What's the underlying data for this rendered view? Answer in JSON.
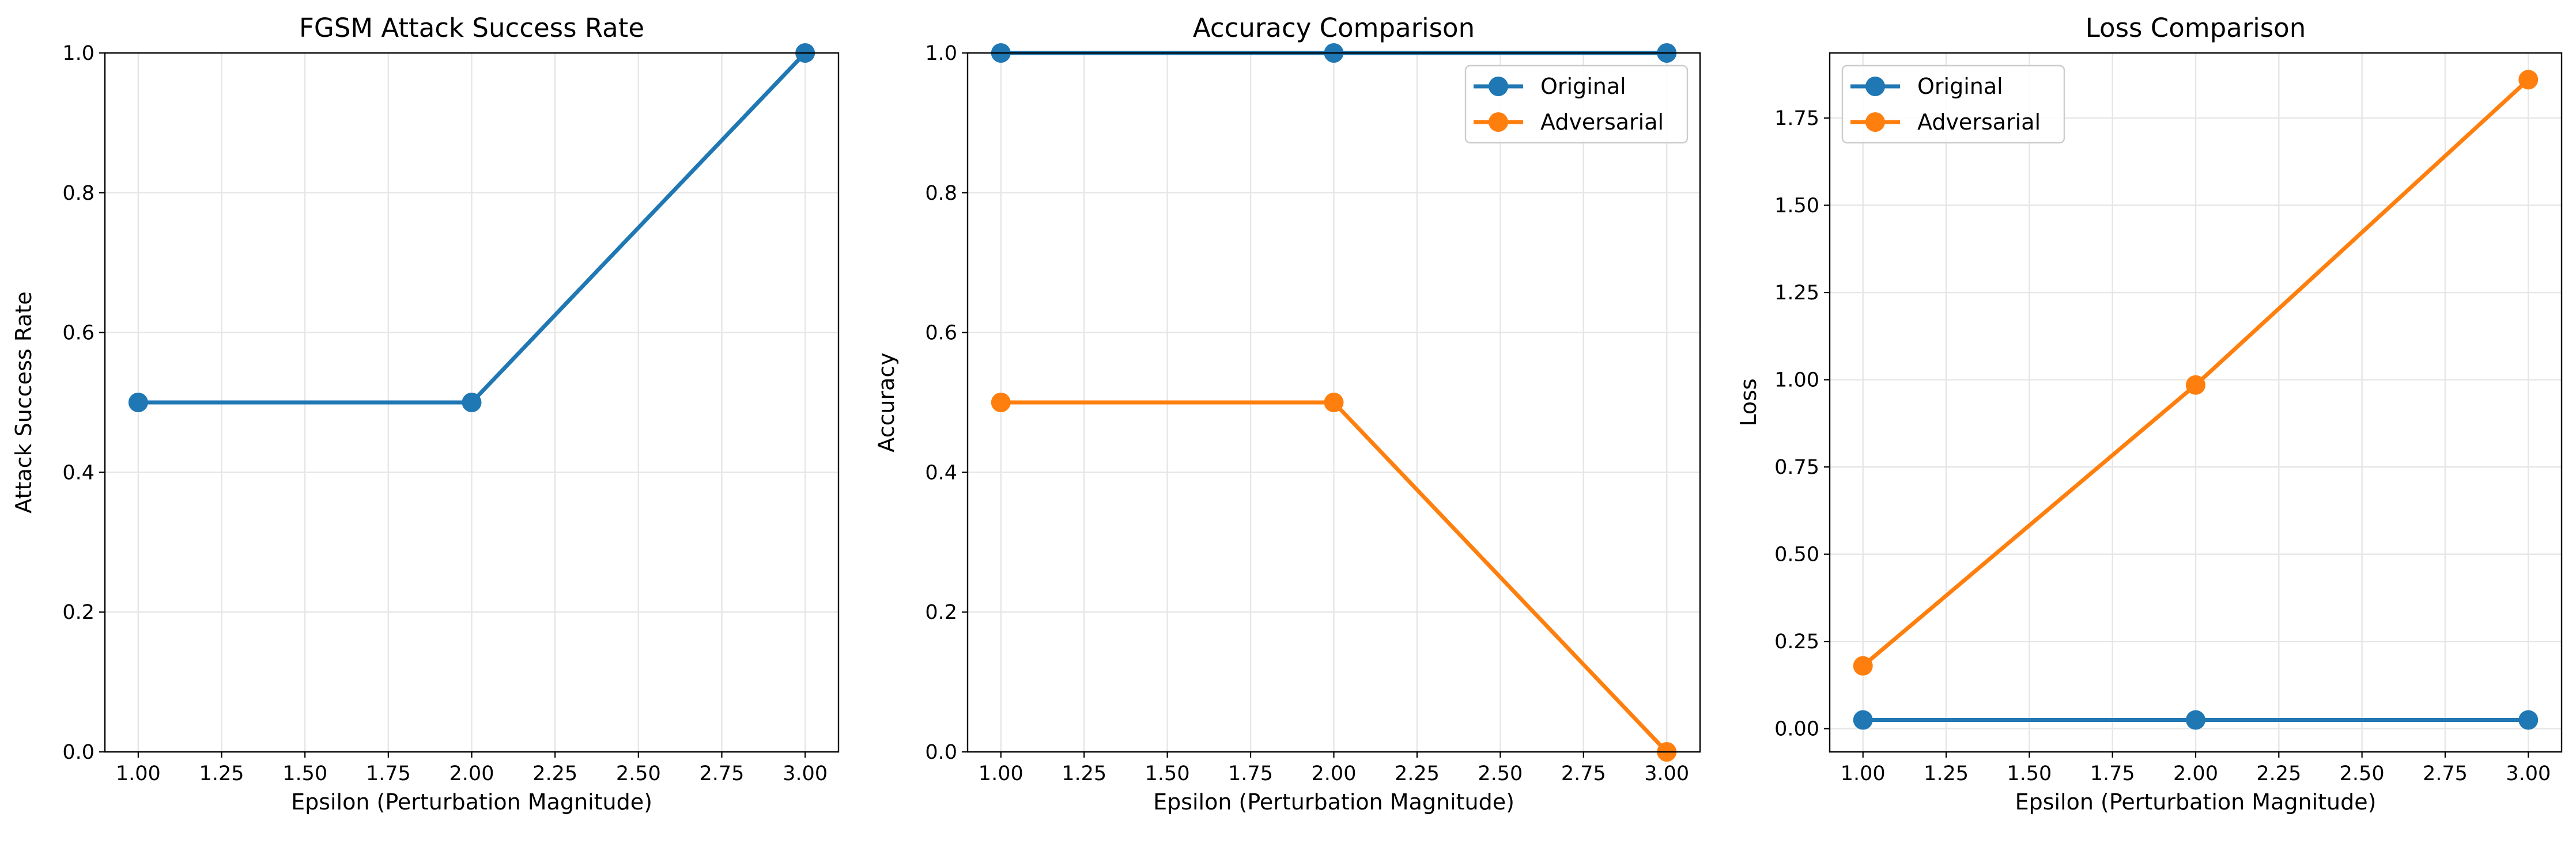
{
  "chart_data": [
    {
      "type": "line",
      "title": "FGSM Attack Success Rate",
      "xlabel": "Epsilon (Perturbation Magnitude)",
      "ylabel": "Attack Success Rate",
      "x": [
        1.0,
        2.0,
        3.0
      ],
      "xlim": [
        0.9,
        3.1
      ],
      "ylim": [
        0.0,
        1.0
      ],
      "xticks": [
        "1.00",
        "1.25",
        "1.50",
        "1.75",
        "2.00",
        "2.25",
        "2.50",
        "2.75",
        "3.00"
      ],
      "yticks": [
        "0.0",
        "0.2",
        "0.4",
        "0.6",
        "0.8",
        "1.0"
      ],
      "grid": true,
      "legend": null,
      "series": [
        {
          "name": "",
          "color": "#1f77b4",
          "values": [
            0.5,
            0.5,
            1.0
          ]
        }
      ]
    },
    {
      "type": "line",
      "title": "Accuracy Comparison",
      "xlabel": "Epsilon (Perturbation Magnitude)",
      "ylabel": "Accuracy",
      "x": [
        1.0,
        2.0,
        3.0
      ],
      "xlim": [
        0.9,
        3.1
      ],
      "ylim": [
        0.0,
        1.0
      ],
      "xticks": [
        "1.00",
        "1.25",
        "1.50",
        "1.75",
        "2.00",
        "2.25",
        "2.50",
        "2.75",
        "3.00"
      ],
      "yticks": [
        "0.0",
        "0.2",
        "0.4",
        "0.6",
        "0.8",
        "1.0"
      ],
      "grid": true,
      "legend": "top-right",
      "series": [
        {
          "name": "Original",
          "color": "#1f77b4",
          "values": [
            1.0,
            1.0,
            1.0
          ]
        },
        {
          "name": "Adversarial",
          "color": "#ff7f0e",
          "values": [
            0.5,
            0.5,
            0.0
          ]
        }
      ]
    },
    {
      "type": "line",
      "title": "Loss Comparison",
      "xlabel": "Epsilon (Perturbation Magnitude)",
      "ylabel": "Loss",
      "x": [
        1.0,
        2.0,
        3.0
      ],
      "xlim": [
        0.9,
        3.1
      ],
      "ylim": [
        -0.0665,
        1.9365
      ],
      "xticks": [
        "1.00",
        "1.25",
        "1.50",
        "1.75",
        "2.00",
        "2.25",
        "2.50",
        "2.75",
        "3.00"
      ],
      "yticks": [
        "0.00",
        "0.25",
        "0.50",
        "0.75",
        "1.00",
        "1.25",
        "1.50",
        "1.75"
      ],
      "grid": true,
      "legend": "top-left",
      "series": [
        {
          "name": "Original",
          "color": "#1f77b4",
          "values": [
            0.025,
            0.025,
            0.025
          ]
        },
        {
          "name": "Adversarial",
          "color": "#ff7f0e",
          "values": [
            0.18,
            0.985,
            1.86
          ]
        }
      ]
    }
  ]
}
